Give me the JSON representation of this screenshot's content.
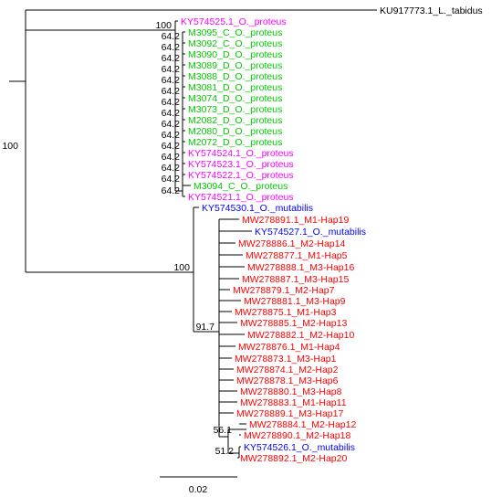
{
  "tree": {
    "taxa": [
      {
        "label": "KU917773.1_L._tabidus",
        "color": "#000000"
      },
      {
        "label": "KY574525.1_O._proteus",
        "color": "#ff00ff"
      },
      {
        "label": "M3095_C_O._proteus",
        "color": "#00cc00"
      },
      {
        "label": "M3092_C_O._proteus",
        "color": "#00cc00"
      },
      {
        "label": "M3090_D_O._proteus",
        "color": "#00cc00"
      },
      {
        "label": "M3089_D_O._proteus",
        "color": "#00cc00"
      },
      {
        "label": "M3088_D_O._proteus",
        "color": "#00cc00"
      },
      {
        "label": "M3081_D_O._proteus",
        "color": "#00cc00"
      },
      {
        "label": "M3074_D_O._proteus",
        "color": "#00cc00"
      },
      {
        "label": "M3073_D_O._proteus",
        "color": "#00cc00"
      },
      {
        "label": "M2082_D_O._proteus",
        "color": "#00cc00"
      },
      {
        "label": "M2080_D_O._proteus",
        "color": "#00cc00"
      },
      {
        "label": "M2072_D_O._proteus",
        "color": "#00cc00"
      },
      {
        "label": "KY574524.1_O._proteus",
        "color": "#ff00ff"
      },
      {
        "label": "KY574523.1_O._proteus",
        "color": "#ff00ff"
      },
      {
        "label": "KY574522.1_O._proteus",
        "color": "#ff00ff"
      },
      {
        "label": "M3094_C_O._proteus",
        "color": "#00cc00"
      },
      {
        "label": "KY574521.1_O._proteus",
        "color": "#ff00ff"
      },
      {
        "label": "KY574530.1_O._mutabilis",
        "color": "#0000ff"
      },
      {
        "label": "MW278891.1_M1-Hap19",
        "color": "#ff0000"
      },
      {
        "label": "KY574527.1_O._mutabilis",
        "color": "#0000ff"
      },
      {
        "label": "MW278886.1_M2-Hap14",
        "color": "#ff0000"
      },
      {
        "label": "MW278877.1_M1-Hap5",
        "color": "#ff0000"
      },
      {
        "label": "MW278888.1_M3-Hap16",
        "color": "#ff0000"
      },
      {
        "label": "MW278887.1_M3-Hap15",
        "color": "#ff0000"
      },
      {
        "label": "MW278879.1_M2-Hap7",
        "color": "#ff0000"
      },
      {
        "label": "MW278881.1_M3-Hap9",
        "color": "#ff0000"
      },
      {
        "label": "MW278875.1_M1-Hap3",
        "color": "#ff0000"
      },
      {
        "label": "MW278885.1_M2-Hap13",
        "color": "#ff0000"
      },
      {
        "label": "MW278882.1_M2-Hap10",
        "color": "#ff0000"
      },
      {
        "label": "MW278876.1_M1-Hap4",
        "color": "#ff0000"
      },
      {
        "label": "MW278873.1_M3-Hap1",
        "color": "#ff0000"
      },
      {
        "label": "MW278874.1_M2-Hap2",
        "color": "#ff0000"
      },
      {
        "label": "MW278878.1_M3-Hap6",
        "color": "#ff0000"
      },
      {
        "label": "MW278880.1_M3-Hap8",
        "color": "#ff0000"
      },
      {
        "label": "MW278883.1_M1-Hap11",
        "color": "#ff0000"
      },
      {
        "label": "MW278889.1_M3-Hap17",
        "color": "#ff0000"
      },
      {
        "label": "MW278884.1_M2-Hap12",
        "color": "#ff0000"
      },
      {
        "label": "MW278890.1_M2-Hap18",
        "color": "#ff0000"
      },
      {
        "label": "KY574526.1_O._mutabilis",
        "color": "#0000ff"
      },
      {
        "label": "MW278892.1_M2-Hap20",
        "color": "#ff0000"
      }
    ],
    "support_values": [
      "100",
      "100",
      "100",
      "91.7",
      "56.1",
      "51.2",
      "64.2",
      "64.2",
      "64.2",
      "64.2",
      "64.2",
      "64.2",
      "64.2",
      "64.2",
      "64.2",
      "64.2",
      "64.2",
      "64.2",
      "64.2",
      "64.2",
      "64.2"
    ],
    "scale_bar_label": "0.02"
  }
}
